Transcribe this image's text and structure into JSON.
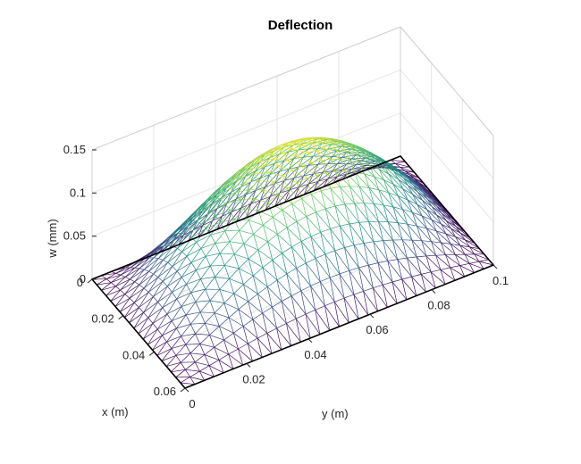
{
  "chart_data": {
    "type": "surface",
    "title": "Deflection",
    "xlabel": "x (m)",
    "ylabel": "y (m)",
    "zlabel": "w (mm)",
    "xlim": [
      0,
      0.06
    ],
    "ylim": [
      0,
      0.1
    ],
    "zlim": [
      0,
      0.15
    ],
    "x_ticks": [
      {
        "value": 0,
        "label": "0"
      },
      {
        "value": 0.02,
        "label": "0.02"
      },
      {
        "value": 0.04,
        "label": "0.04"
      },
      {
        "value": 0.06,
        "label": "0.06"
      }
    ],
    "y_ticks": [
      {
        "value": 0,
        "label": "0"
      },
      {
        "value": 0.02,
        "label": "0.02"
      },
      {
        "value": 0.04,
        "label": "0.04"
      },
      {
        "value": 0.06,
        "label": "0.06"
      },
      {
        "value": 0.08,
        "label": "0.08"
      },
      {
        "value": 0.1,
        "label": "0.1"
      }
    ],
    "z_ticks": [
      {
        "value": 0,
        "label": "0"
      },
      {
        "value": 0.05,
        "label": "0.05"
      },
      {
        "value": 0.1,
        "label": "0.1"
      },
      {
        "value": 0.15,
        "label": "0.15"
      }
    ],
    "surface": {
      "description_function": "w = w_max * sin(pi*x/0.06) * sin(pi*y/0.1)",
      "w_max": 0.143,
      "x_samples": 20,
      "y_samples": 32
    },
    "colormap": [
      "#440154",
      "#3b528b",
      "#21918c",
      "#5ec962",
      "#fde725"
    ],
    "grid": true,
    "mesh_triangulated": true
  }
}
